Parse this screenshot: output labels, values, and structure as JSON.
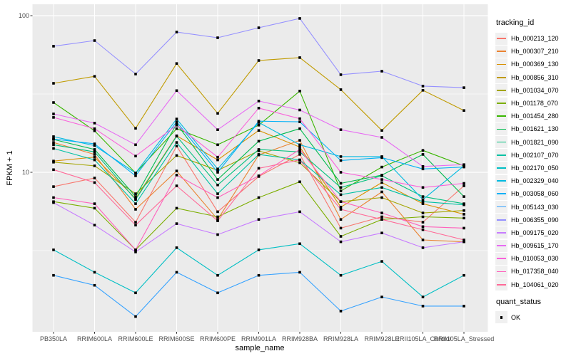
{
  "chart_data": {
    "type": "line",
    "title": "",
    "xlabel": "sample_name",
    "ylabel": "FPKM + 1",
    "y_scale": "log10",
    "ylim": [
      0.96,
      118
    ],
    "y_ticks": [
      {
        "value": 10,
        "label": "10"
      },
      {
        "value": 100,
        "label": "100"
      }
    ],
    "y_minor_ticks": [
      3.162,
      31.62
    ],
    "grid": true,
    "panel_bg": "#EBEBEB",
    "grid_color": "#FFFFFF",
    "point_shape": "filled-square",
    "point_color": "#000000",
    "axis_text_color": "#4D4D4D",
    "categories": [
      "PB350LA",
      "RRIM600LA",
      "RRIM600LE",
      "RRIM600SE",
      "RRIM600PE",
      "RRIM901LA",
      "RRIM928BA",
      "RRIM928LA",
      "RRIM928LE",
      "RRII105LA_Control",
      "RRII105LA_Stressed"
    ],
    "legend": {
      "position": "right",
      "color_title": "tracking_id",
      "shape_title": "quant_status",
      "shape_items": [
        {
          "label": "OK"
        }
      ]
    },
    "series": [
      {
        "name": "Hb_000213_120",
        "color": "#F8766D",
        "values": [
          8.1,
          9.2,
          4.8,
          14.7,
          5.6,
          9.4,
          13.0,
          4.4,
          5.2,
          4.8,
          8.2
        ]
      },
      {
        "name": "Hb_000307_210",
        "color": "#EA8331",
        "values": [
          15.5,
          13.0,
          5.8,
          10.2,
          5.0,
          12.9,
          16.0,
          5.0,
          7.5,
          3.7,
          3.6
        ]
      },
      {
        "name": "Hb_000369_130",
        "color": "#D89000",
        "values": [
          11.8,
          12.5,
          6.8,
          17.1,
          12.0,
          18.5,
          14.5,
          6.0,
          8.6,
          6.3,
          5.4
        ]
      },
      {
        "name": "Hb_000856_310",
        "color": "#C09B00",
        "values": [
          37.0,
          41.0,
          19.1,
          49.5,
          23.8,
          51.7,
          54.0,
          33.7,
          18.5,
          33.4,
          24.8
        ]
      },
      {
        "name": "Hb_001034_070",
        "color": "#A3A500",
        "values": [
          11.6,
          11.0,
          7.3,
          12.8,
          10.3,
          13.7,
          11.5,
          6.5,
          6.9,
          5.5,
          5.7
        ]
      },
      {
        "name": "Hb_001178_070",
        "color": "#7CAE00",
        "values": [
          6.5,
          5.9,
          3.2,
          5.9,
          5.2,
          6.9,
          8.7,
          3.9,
          5.0,
          5.2,
          5.1
        ]
      },
      {
        "name": "Hb_001454_280",
        "color": "#39B600",
        "values": [
          27.9,
          18.4,
          9.9,
          19.0,
          15.0,
          20.0,
          33.0,
          7.6,
          10.8,
          13.8,
          11.0
        ]
      },
      {
        "name": "Hb_001621_130",
        "color": "#00BB4E",
        "values": [
          16.2,
          14.0,
          7.0,
          20.4,
          9.0,
          15.8,
          19.0,
          8.5,
          9.6,
          13.0,
          7.0
        ]
      },
      {
        "name": "Hb_001821_090",
        "color": "#00BF7D",
        "values": [
          15.0,
          13.5,
          6.7,
          17.0,
          8.3,
          14.0,
          13.5,
          8.0,
          9.5,
          7.0,
          6.3
        ]
      },
      {
        "name": "Hb_002107_070",
        "color": "#00C1A3",
        "values": [
          14.2,
          12.0,
          6.3,
          15.5,
          7.3,
          13.0,
          12.0,
          7.2,
          8.0,
          6.5,
          6.2
        ]
      },
      {
        "name": "Hb_002170_050",
        "color": "#00BFC4",
        "values": [
          3.2,
          2.3,
          1.7,
          3.3,
          2.2,
          3.2,
          3.5,
          2.2,
          2.7,
          1.6,
          2.2
        ]
      },
      {
        "name": "Hb_002329_040",
        "color": "#00BAE0",
        "values": [
          16.9,
          14.8,
          9.9,
          21.9,
          10.5,
          20.8,
          15.0,
          12.6,
          12.6,
          6.7,
          11.0
        ]
      },
      {
        "name": "Hb_003058_060",
        "color": "#00B0F6",
        "values": [
          16.3,
          15.2,
          9.5,
          21.0,
          10.0,
          21.2,
          21.0,
          11.9,
          12.4,
          10.5,
          10.8
        ]
      },
      {
        "name": "Hb_005143_030",
        "color": "#35A2FF",
        "values": [
          2.2,
          1.9,
          1.2,
          2.3,
          1.7,
          2.2,
          2.3,
          1.3,
          1.6,
          1.4,
          1.4
        ]
      },
      {
        "name": "Hb_006355_090",
        "color": "#9590FF",
        "values": [
          63.8,
          69.3,
          42.4,
          78.6,
          72.3,
          83.7,
          96.0,
          42.0,
          44.2,
          35.5,
          34.7
        ]
      },
      {
        "name": "Hb_009175_020",
        "color": "#C77CFF",
        "values": [
          6.4,
          4.6,
          3.1,
          4.7,
          4.0,
          5.0,
          5.6,
          3.6,
          4.1,
          3.3,
          3.6
        ]
      },
      {
        "name": "Hb_009615_170",
        "color": "#E76BF3",
        "values": [
          23.6,
          20.6,
          15.0,
          33.2,
          18.7,
          28.5,
          25.0,
          18.7,
          16.7,
          10.9,
          11.2
        ]
      },
      {
        "name": "Hb_010053_030",
        "color": "#FA62DB",
        "values": [
          22.4,
          19.0,
          12.7,
          20.0,
          12.5,
          25.7,
          22.0,
          10.0,
          9.0,
          8.0,
          8.5
        ]
      },
      {
        "name": "Hb_017358_040",
        "color": "#FF62BC",
        "values": [
          6.9,
          6.3,
          3.2,
          9.6,
          6.9,
          9.5,
          14.0,
          6.5,
          5.5,
          4.5,
          4.4
        ]
      },
      {
        "name": "Hb_104061_020",
        "color": "#FF6A98",
        "values": [
          10.4,
          8.6,
          4.6,
          8.2,
          4.9,
          10.6,
          12.0,
          5.8,
          5.0,
          4.3,
          3.7
        ]
      }
    ]
  }
}
